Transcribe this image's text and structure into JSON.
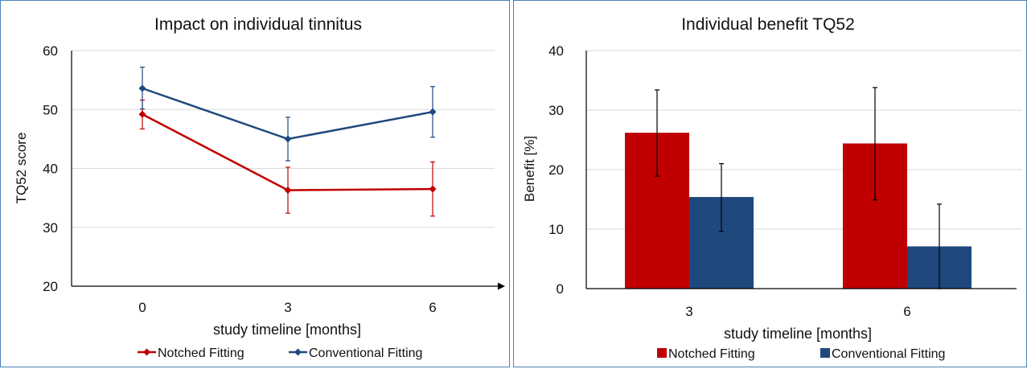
{
  "colors": {
    "notched": "#c00000",
    "conventional": "#1f497d",
    "border": "#4f81bd",
    "grid": "#d9d9d9",
    "axis": "#000000",
    "error": "#000000"
  },
  "chart_data": [
    {
      "type": "line",
      "title": "Impact on individual tinnitus",
      "xlabel": "study timeline [months]",
      "ylabel": "TQ52 score",
      "ylim": [
        20,
        60
      ],
      "yticks": [
        "20",
        "30",
        "40",
        "50",
        "60"
      ],
      "categories": [
        "0",
        "3",
        "6"
      ],
      "grid": true,
      "legend_position": "bottom",
      "series": [
        {
          "name": "Notched Fitting",
          "color": "#c00000",
          "values": [
            49.2,
            36.3,
            36.5
          ],
          "err_low": [
            46.7,
            32.4,
            31.9
          ],
          "err_high": [
            51.6,
            40.2,
            41.1
          ]
        },
        {
          "name": "Conventional Fitting",
          "color": "#1f497d",
          "values": [
            53.6,
            45.0,
            49.6
          ],
          "err_low": [
            50.1,
            41.3,
            45.3
          ],
          "err_high": [
            57.2,
            48.7,
            53.9
          ]
        }
      ]
    },
    {
      "type": "bar",
      "title": "Individual benefit TQ52",
      "xlabel": "study timeline [months]",
      "ylabel": "Benefit [%]",
      "ylim": [
        0,
        40
      ],
      "yticks": [
        "0",
        "10",
        "20",
        "30",
        "40"
      ],
      "categories": [
        "3",
        "6"
      ],
      "grid": true,
      "legend_position": "bottom",
      "series": [
        {
          "name": "Notched Fitting",
          "color": "#c00000",
          "values": [
            26.2,
            24.4
          ],
          "err_low": [
            18.9,
            14.9
          ],
          "err_high": [
            33.4,
            33.8
          ]
        },
        {
          "name": "Conventional Fitting",
          "color": "#1f497d",
          "values": [
            15.4,
            7.1
          ],
          "err_low": [
            9.6,
            0.0
          ],
          "err_high": [
            21.0,
            14.2
          ]
        }
      ]
    }
  ]
}
